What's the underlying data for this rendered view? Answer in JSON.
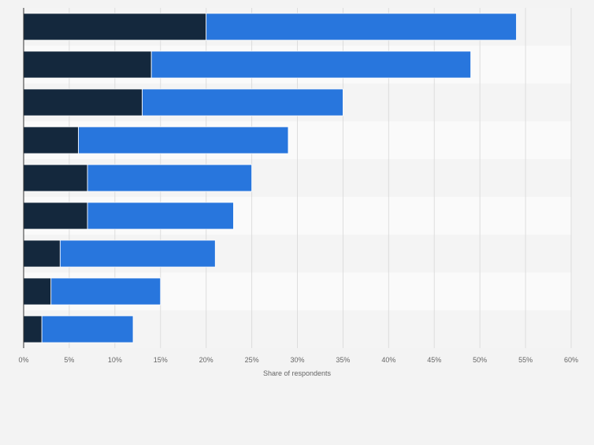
{
  "chart_data": {
    "type": "bar",
    "orientation": "horizontal",
    "stacked": true,
    "categories": [
      "",
      "",
      "",
      "",
      "",
      "",
      "",
      "",
      ""
    ],
    "series": [
      {
        "values": [
          20,
          14,
          13,
          6,
          7,
          7,
          4,
          3,
          2
        ],
        "color": "#14283d"
      },
      {
        "values": [
          34,
          35,
          22,
          23,
          18,
          16,
          17,
          12,
          10
        ],
        "color": "#2876dd"
      }
    ],
    "xlabel": "Share of respondents",
    "ylabel": "",
    "xlim": [
      0,
      60
    ],
    "tick_labels": [
      "0%",
      "5%",
      "10%",
      "15%",
      "20%",
      "25%",
      "30%",
      "35%",
      "40%",
      "45%",
      "50%",
      "55%",
      "60%"
    ],
    "grid": true,
    "legend": "none"
  }
}
